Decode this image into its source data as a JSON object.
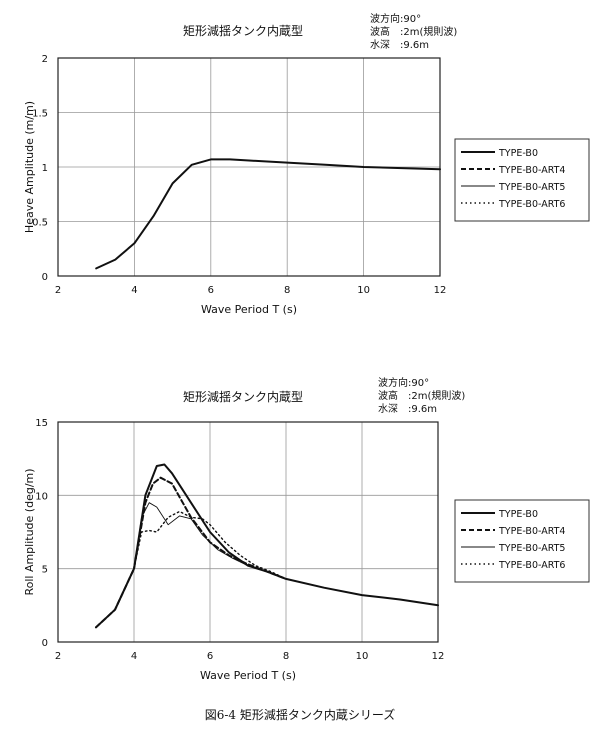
{
  "caption": "図6-4 矩形減揺タンク内蔵シリーズ",
  "legend_entries": [
    "TYPE-B0",
    "TYPE-B0-ART4",
    "TYPE-B0-ART5",
    "TYPE-B0-ART6"
  ],
  "chart_data": [
    {
      "type": "line",
      "title": "矩形減揺タンク内蔵型",
      "conditions": [
        "波方向:90°",
        "波高　:2m(規則波)",
        "水深　:9.6m"
      ],
      "xlabel": "Wave Period  T (s)",
      "ylabel": "Heave Amplitude (m/m)",
      "xlim": [
        2,
        12
      ],
      "ylim": [
        0,
        2
      ],
      "xticks": [
        2,
        4,
        6,
        8,
        10,
        12
      ],
      "yticks": [
        0,
        0.5,
        1,
        1.5,
        2
      ],
      "grid": true,
      "legend": "right",
      "series": [
        {
          "name": "TYPE-B0",
          "style": "solid",
          "x": [
            3.0,
            3.5,
            4.0,
            4.5,
            5.0,
            5.5,
            6.0,
            6.5,
            7.0,
            8.0,
            9.0,
            10.0,
            11.0,
            12.0
          ],
          "y": [
            0.07,
            0.15,
            0.3,
            0.55,
            0.85,
            1.02,
            1.07,
            1.07,
            1.06,
            1.04,
            1.02,
            1.0,
            0.99,
            0.98
          ]
        }
      ]
    },
    {
      "type": "line",
      "title": "矩形減揺タンク内蔵型",
      "conditions": [
        "波方向:90°",
        "波高　:2m(規則波)",
        "水深　:9.6m"
      ],
      "xlabel": "Wave Period  T (s)",
      "ylabel": "Roll Amplitude (deg/m)",
      "xlim": [
        2,
        12
      ],
      "ylim": [
        0,
        15
      ],
      "xticks": [
        2,
        4,
        6,
        8,
        10,
        12
      ],
      "yticks": [
        0,
        5,
        10,
        15
      ],
      "grid": true,
      "legend": "right",
      "series": [
        {
          "name": "TYPE-B0",
          "style": "solid",
          "x": [
            3.0,
            3.5,
            4.0,
            4.3,
            4.6,
            4.8,
            5.0,
            5.5,
            6.0,
            6.5,
            7.0,
            7.5,
            8.0,
            9.0,
            10.0,
            11.0,
            12.0
          ],
          "y": [
            1.0,
            2.2,
            5.0,
            10.0,
            12.0,
            12.1,
            11.5,
            9.5,
            7.5,
            6.1,
            5.2,
            4.8,
            4.3,
            3.7,
            3.2,
            2.9,
            2.5
          ]
        },
        {
          "name": "TYPE-B0-ART4",
          "style": "dashed",
          "x": [
            3.0,
            3.5,
            4.0,
            4.3,
            4.5,
            4.7,
            5.0,
            5.5,
            6.0,
            6.5,
            7.0,
            7.5,
            8.0
          ],
          "y": [
            1.0,
            2.2,
            5.0,
            9.5,
            10.8,
            11.2,
            10.8,
            8.5,
            6.8,
            5.9,
            5.3,
            4.8,
            4.3
          ]
        },
        {
          "name": "TYPE-B0-ART5",
          "style": "thin",
          "x": [
            3.0,
            3.5,
            4.0,
            4.2,
            4.4,
            4.6,
            4.9,
            5.2,
            5.5,
            5.8,
            6.2,
            6.6,
            7.0,
            7.5,
            8.0
          ],
          "y": [
            1.0,
            2.2,
            5.0,
            8.5,
            9.5,
            9.2,
            8.0,
            8.6,
            8.4,
            7.3,
            6.3,
            5.7,
            5.2,
            4.8,
            4.3
          ]
        },
        {
          "name": "TYPE-B0-ART6",
          "style": "dotted",
          "x": [
            3.0,
            3.5,
            4.0,
            4.2,
            4.4,
            4.6,
            4.9,
            5.2,
            5.5,
            5.8,
            6.0,
            6.4,
            6.8,
            7.2,
            7.6,
            8.0
          ],
          "y": [
            1.0,
            2.2,
            5.0,
            7.5,
            7.6,
            7.5,
            8.5,
            8.9,
            8.5,
            8.4,
            8.0,
            6.8,
            5.9,
            5.2,
            4.8,
            4.3
          ]
        }
      ]
    }
  ]
}
